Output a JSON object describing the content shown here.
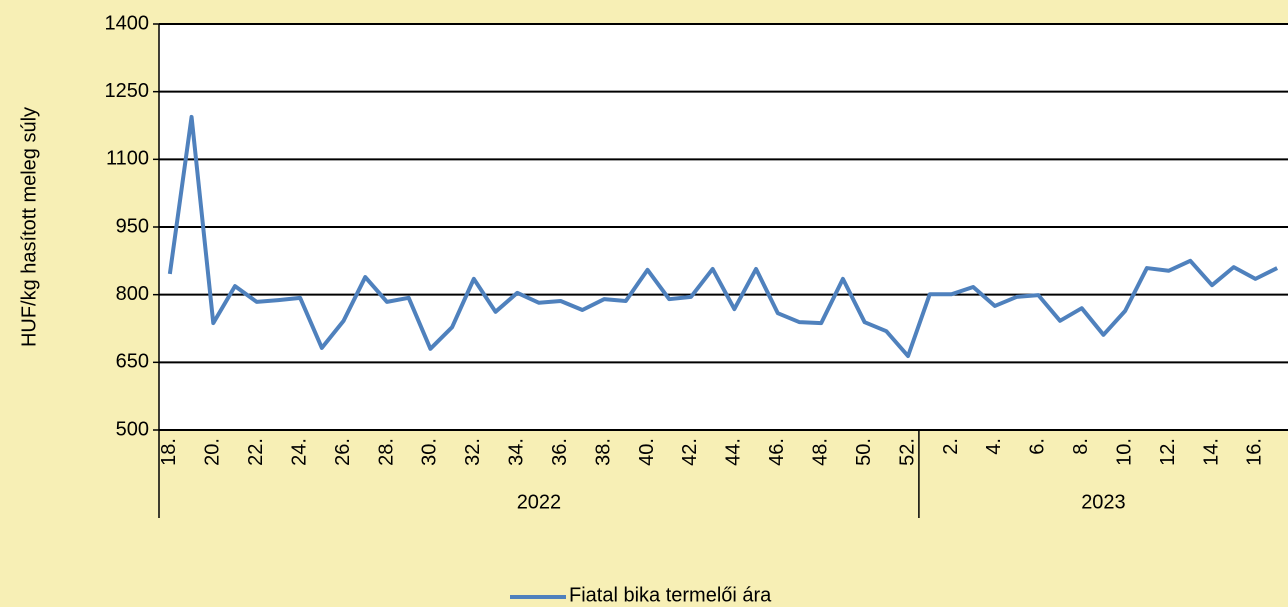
{
  "chart_data": {
    "type": "line",
    "y_label": "HUF/kg hasított meleg súly",
    "categories": [
      "18.",
      null,
      "20.",
      null,
      "22.",
      null,
      "24.",
      null,
      "26.",
      null,
      "28.",
      null,
      "30.",
      null,
      "32.",
      null,
      "34.",
      null,
      "36.",
      null,
      "38.",
      null,
      "40.",
      null,
      "42.",
      null,
      "44.",
      null,
      "46.",
      null,
      "48.",
      null,
      "50.",
      null,
      "52.",
      null,
      "2.",
      null,
      "4.",
      null,
      "6.",
      null,
      "8.",
      null,
      "10.",
      null,
      "12.",
      null,
      "14.",
      null,
      "16.",
      null
    ],
    "x_groups": [
      {
        "label": "2022",
        "categories": 35
      },
      {
        "label": "2023",
        "categories": 17
      }
    ],
    "series": [
      {
        "name": "Fiatal bika termelői ára",
        "color": "#4f81bd",
        "values": [
          846,
          1194,
          737,
          819,
          784,
          788,
          793,
          682,
          742,
          839,
          784,
          793,
          680,
          728,
          835,
          762,
          804,
          782,
          786,
          766,
          790,
          786,
          855,
          790,
          795,
          857,
          768,
          857,
          759,
          739,
          737,
          835,
          739,
          719,
          664,
          801,
          801,
          817,
          775,
          795,
          799,
          742,
          770,
          711,
          764,
          859,
          853,
          875,
          821,
          861,
          835,
          859
        ]
      }
    ],
    "ylim": [
      500,
      1400
    ],
    "yticks": [
      500,
      650,
      800,
      950,
      1100,
      1250,
      1400
    ],
    "grid": true,
    "legend": "bottom"
  }
}
